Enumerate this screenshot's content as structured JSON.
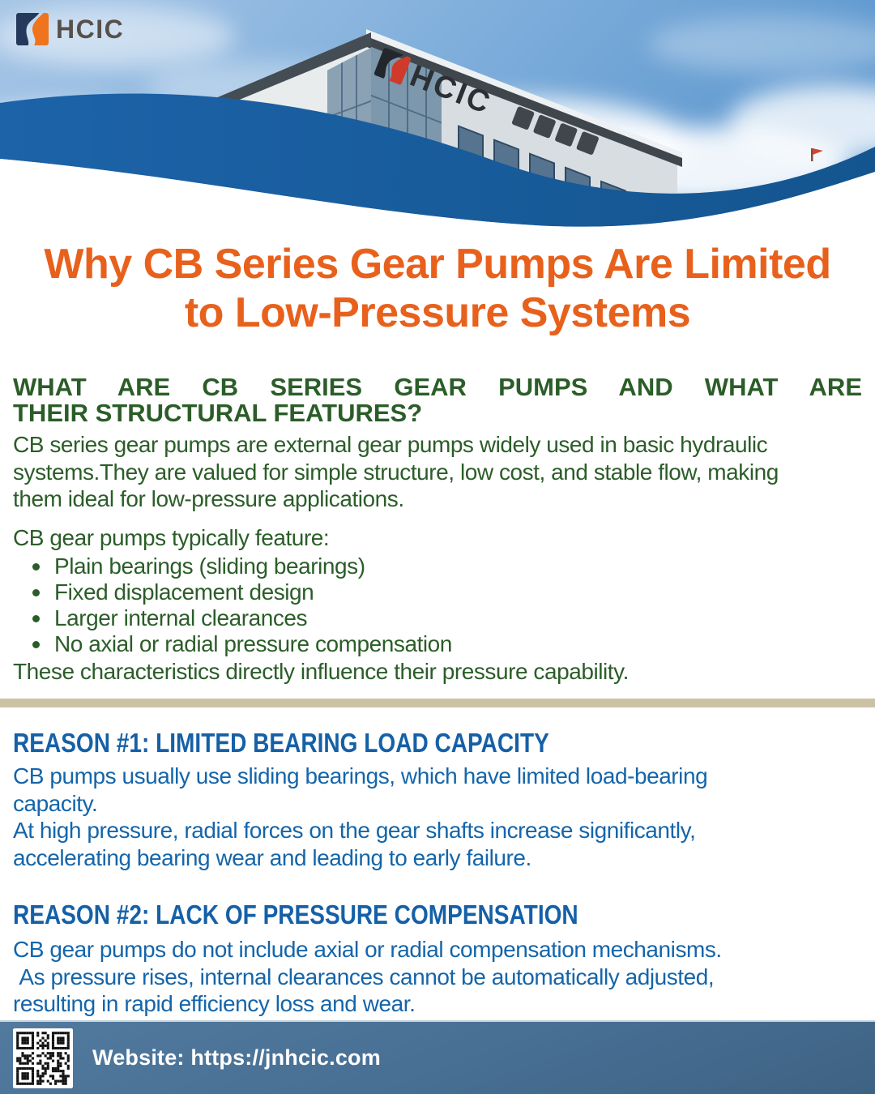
{
  "logo": {
    "text": "HCIC"
  },
  "building_sign": {
    "text": "HCIC"
  },
  "title": {
    "line1": "Why CB Series Gear Pumps Are Limited",
    "line2": "to Low-Pressure Systems"
  },
  "section_green": {
    "heading_line1": "WHAT ARE CB SERIES GEAR PUMPS AND WHAT ARE",
    "heading_line2": "THEIR STRUCTURAL FEATURES?",
    "paragraph": "CB series gear pumps are external gear pumps widely used in basic hydraulic\nsystems.They are valued for simple structure, low cost, and stable flow, making\nthem ideal for low-pressure applications.",
    "list_intro": "CB gear pumps typically feature:",
    "bullets": [
      "Plain bearings (sliding bearings)",
      "Fixed displacement design",
      "Larger internal clearances",
      "No axial or radial pressure compensation"
    ],
    "closing": "These characteristics directly influence their pressure capability."
  },
  "section_reason1": {
    "heading": "REASON #1: LIMITED BEARING LOAD CAPACITY",
    "body": "CB pumps usually use sliding bearings, which have limited load-bearing\ncapacity.\nAt high pressure, radial forces on the gear shafts increase significantly,\naccelerating bearing wear and leading to early failure."
  },
  "section_reason2": {
    "heading": "REASON #2: LACK OF PRESSURE COMPENSATION",
    "body": "CB gear pumps do not include axial or radial compensation mechanisms.\n As pressure rises, internal clearances cannot be automatically adjusted,\nresulting in rapid efficiency loss and wear."
  },
  "footer": {
    "website_label": "Website: https://jnhcic.com"
  },
  "colors": {
    "orange": "#E8611C",
    "green": "#2B5D28",
    "blue-head": "#1560A7",
    "blue-body": "#1465AA",
    "divider": "#CBC1A5",
    "wave": "#1A5C9E"
  }
}
